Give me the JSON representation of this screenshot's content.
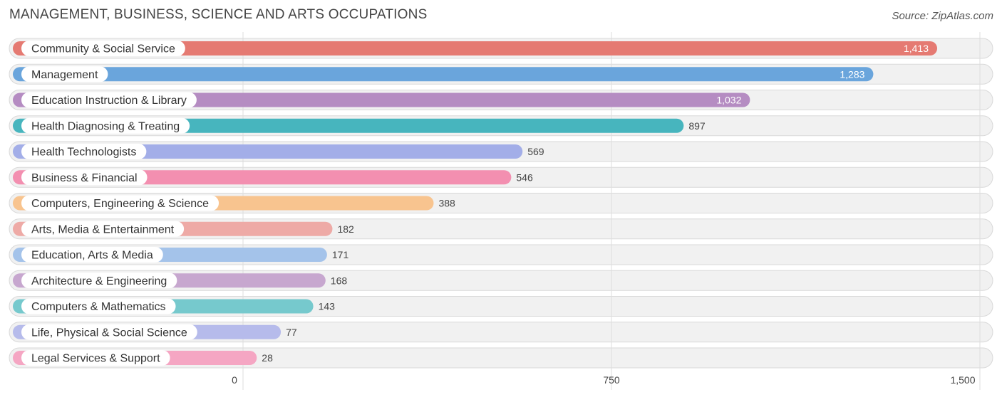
{
  "title": "MANAGEMENT, BUSINESS, SCIENCE AND ARTS OCCUPATIONS",
  "source": "Source: ZipAtlas.com",
  "chart_data": {
    "type": "bar",
    "orientation": "horizontal",
    "xlim": [
      0,
      1500
    ],
    "ticks": [
      0,
      750,
      1500
    ],
    "tick_labels": [
      "0",
      "750",
      "1,500"
    ],
    "grid": true,
    "categories": [
      "Community & Social Service",
      "Management",
      "Education Instruction & Library",
      "Health Diagnosing & Treating",
      "Health Technologists",
      "Business & Financial",
      "Computers, Engineering & Science",
      "Arts, Media & Entertainment",
      "Education, Arts & Media",
      "Architecture & Engineering",
      "Computers & Mathematics",
      "Life, Physical & Social Science",
      "Legal Services & Support"
    ],
    "values": [
      1413,
      1283,
      1032,
      897,
      569,
      546,
      388,
      182,
      171,
      168,
      143,
      77,
      28
    ],
    "value_labels": [
      "1,413",
      "1,283",
      "1,032",
      "897",
      "569",
      "546",
      "388",
      "182",
      "171",
      "168",
      "143",
      "77",
      "28"
    ],
    "colors": [
      "#e57a72",
      "#6aa5dc",
      "#b58cc2",
      "#47b5be",
      "#a3aee8",
      "#f38fb0",
      "#f8c48f",
      "#eeaaa6",
      "#a4c3ea",
      "#c7a7cf",
      "#76c9cd",
      "#b6bbeb",
      "#f5a6c3"
    ]
  }
}
